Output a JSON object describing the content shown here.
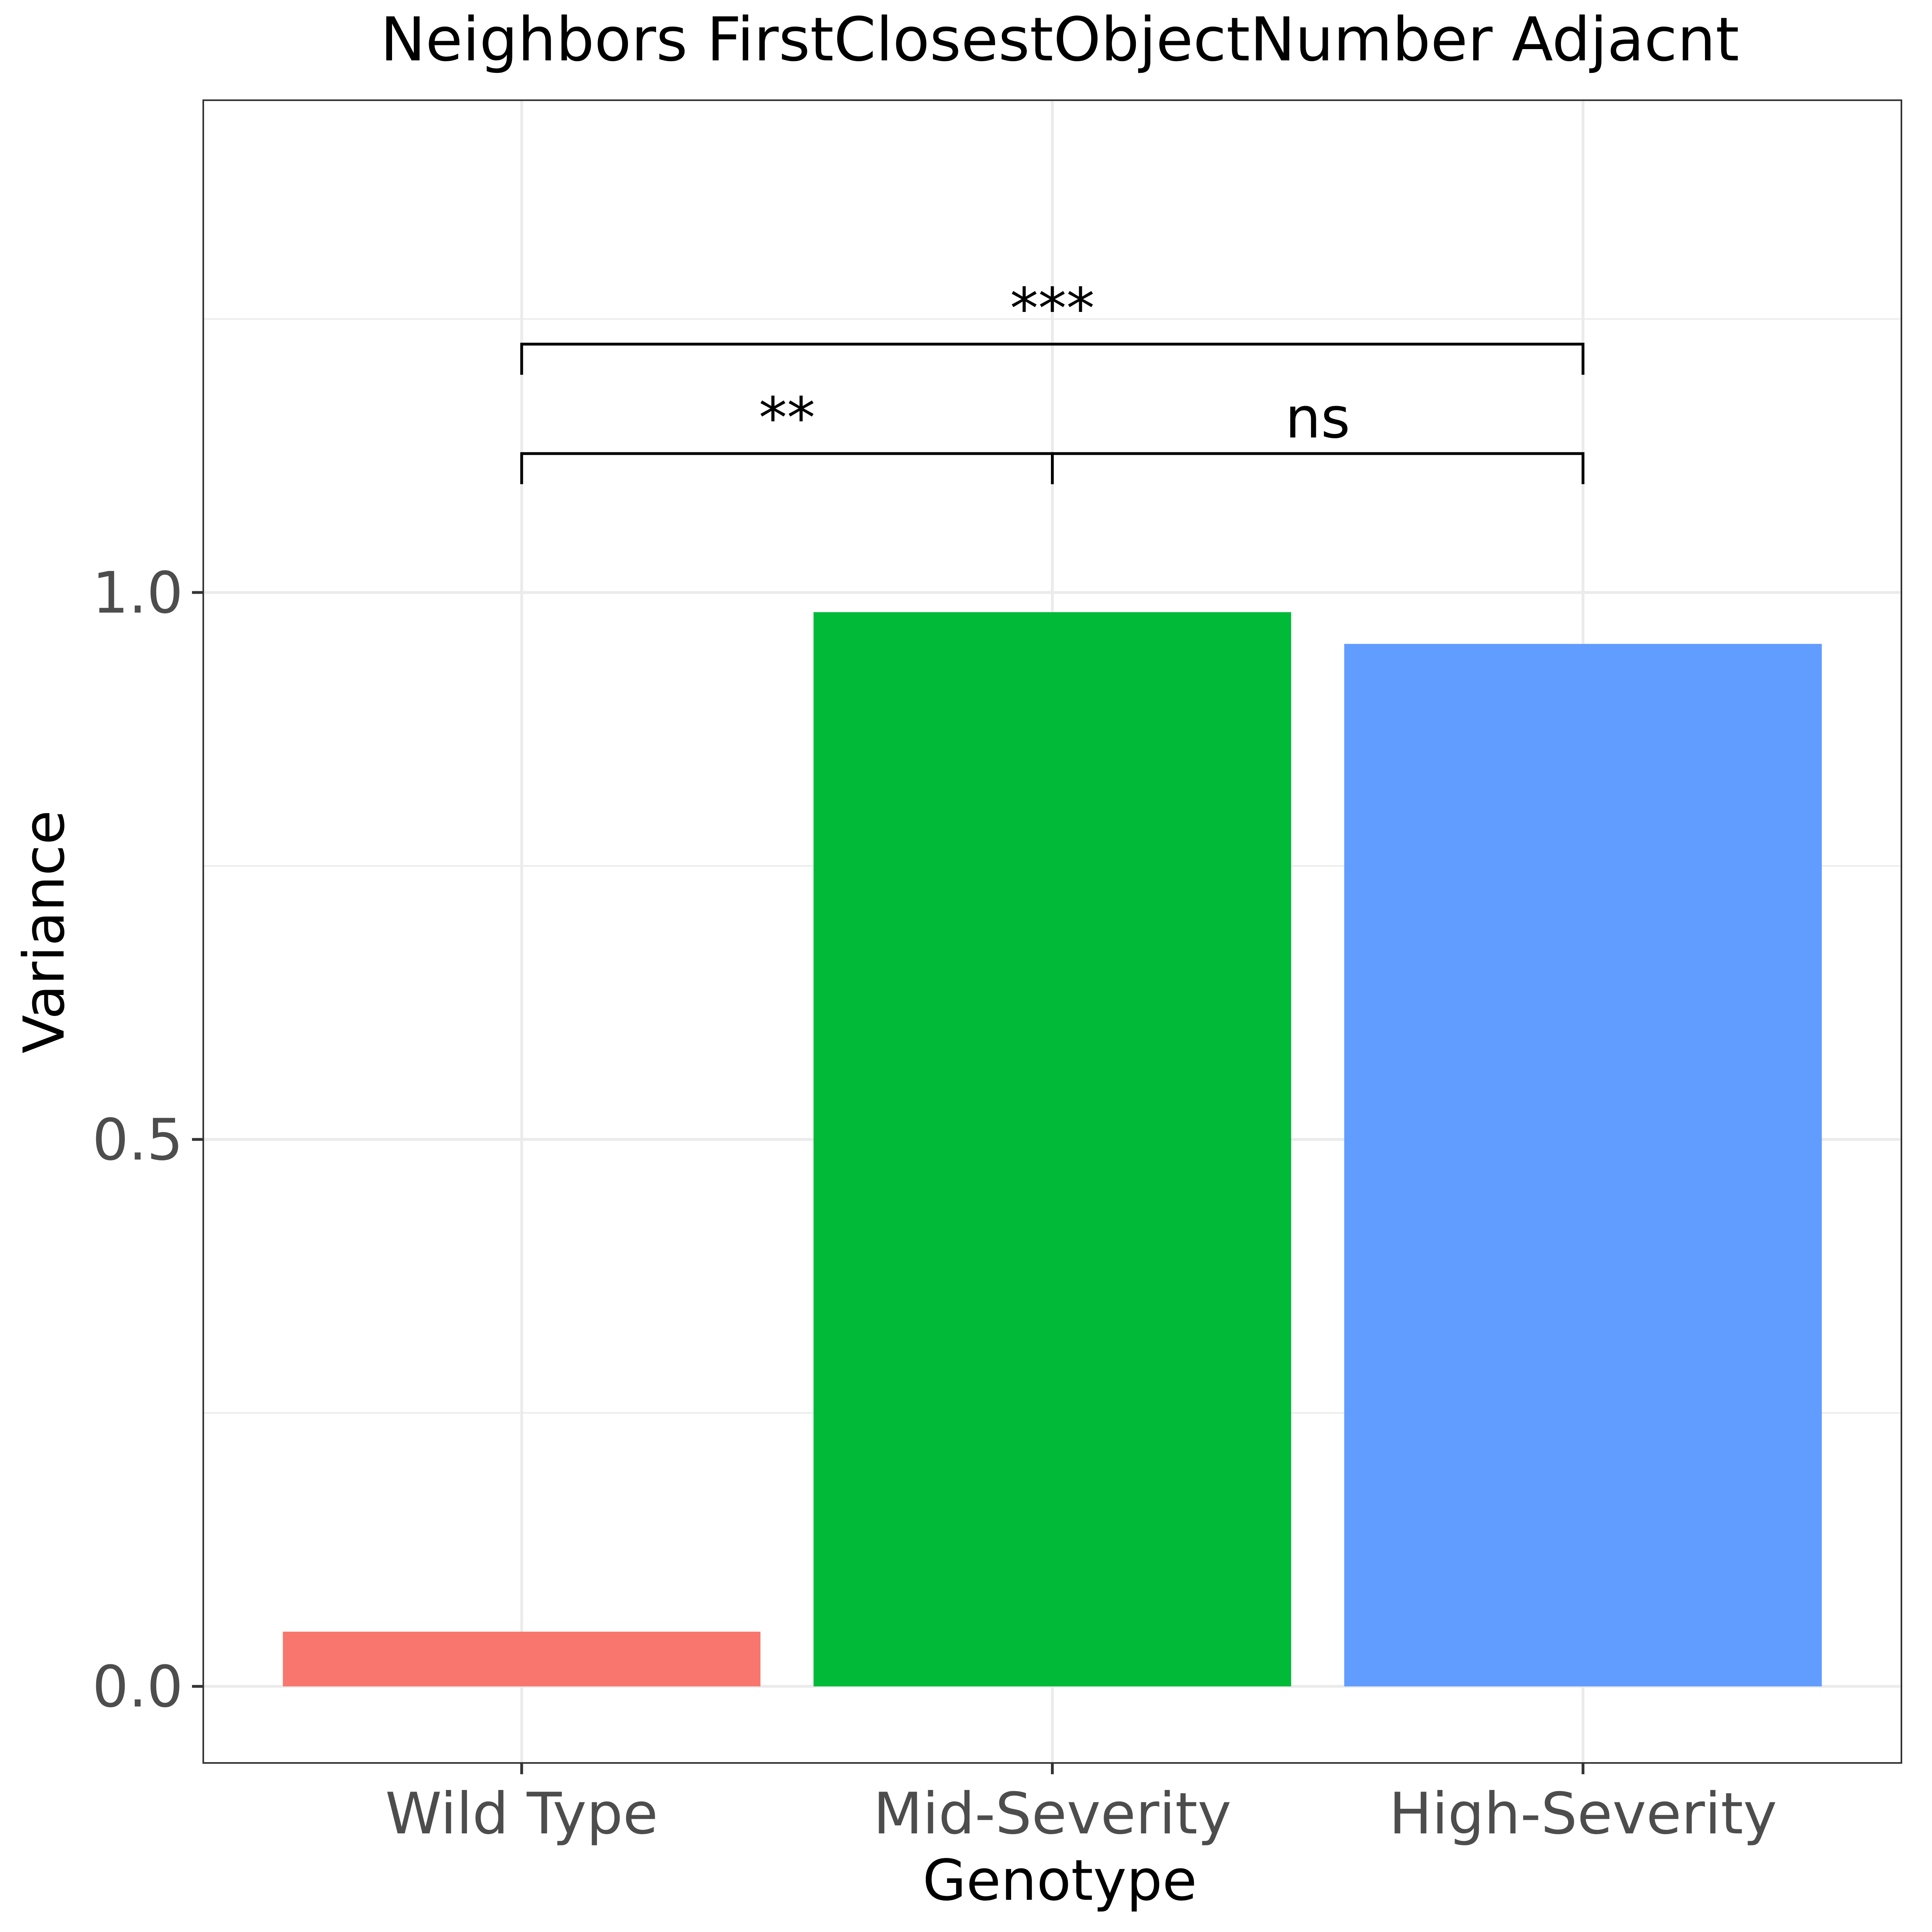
{
  "chart_data": {
    "type": "bar",
    "title": "Neighbors FirstClosestObjectNumber Adjacnt",
    "xlabel": "Genotype",
    "ylabel": "Variance",
    "categories": [
      "Wild Type",
      "Mid-Severity",
      "High-Severity"
    ],
    "values": [
      0.05,
      0.982,
      0.953
    ],
    "colors": [
      "#F8766D",
      "#00BA38",
      "#619CFF"
    ],
    "ylim": [
      -0.07,
      1.45
    ],
    "yticks": [
      0.0,
      0.5,
      1.0
    ],
    "ytick_labels": [
      "0.0",
      "0.5",
      "1.0"
    ],
    "yminor": [
      0.25,
      0.75,
      1.25
    ],
    "grid": true,
    "legend": "none",
    "annotations": [
      {
        "from": "Wild Type",
        "to": "Mid-Severity",
        "label": "**",
        "y": 1.127
      },
      {
        "from": "Mid-Severity",
        "to": "High-Severity",
        "label": "ns",
        "y": 1.127
      },
      {
        "from": "Wild Type",
        "to": "High-Severity",
        "label": "***",
        "y": 1.227
      }
    ]
  }
}
